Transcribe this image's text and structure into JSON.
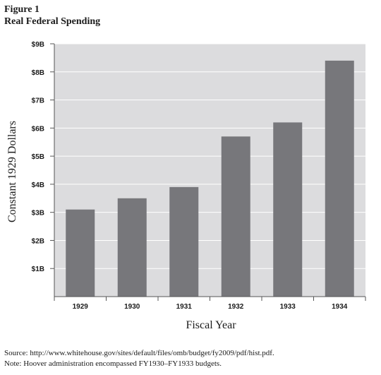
{
  "figure": {
    "label": "Figure 1",
    "title": "Real Federal Spending",
    "source": "Source: http://www.whitehouse.gov/sites/default/files/omb/budget/fy2009/pdf/hist.pdf.",
    "note": "Note: Hoover administration encompassed FY1930–FY1933 budgets."
  },
  "chart_data": {
    "type": "bar",
    "title": "Real Federal Spending",
    "xlabel": "Fiscal Year",
    "ylabel": "Constant 1929 Dollars",
    "categories": [
      "1929",
      "1930",
      "1931",
      "1932",
      "1933",
      "1934"
    ],
    "values": [
      3.1,
      3.5,
      3.9,
      5.7,
      6.2,
      8.4
    ],
    "ylim": [
      0,
      9
    ],
    "yticks": [
      1,
      2,
      3,
      4,
      5,
      6,
      7,
      8,
      9
    ],
    "ytick_labels": [
      "$1B",
      "$2B",
      "$3B",
      "$4B",
      "$5B",
      "$6B",
      "$7B",
      "$8B",
      "$9B"
    ],
    "grid": true,
    "legend": "none",
    "colors": {
      "bar": "#77777b",
      "plot_bg": "#dcdcde",
      "grid": "#ffffff"
    }
  }
}
